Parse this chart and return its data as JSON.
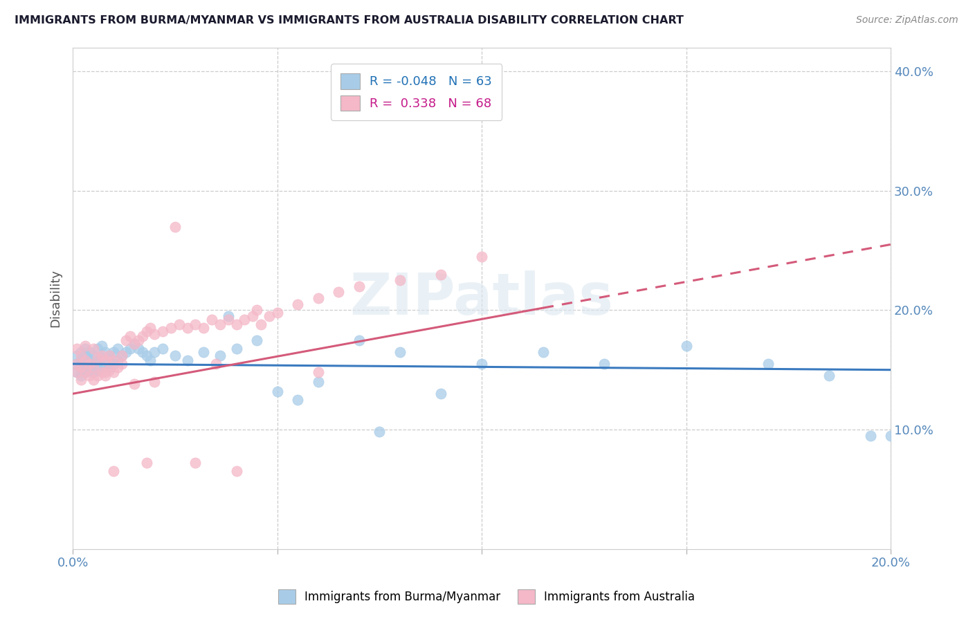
{
  "title": "IMMIGRANTS FROM BURMA/MYANMAR VS IMMIGRANTS FROM AUSTRALIA DISABILITY CORRELATION CHART",
  "source_text": "Source: ZipAtlas.com",
  "ylabel": "Disability",
  "xlim": [
    0.0,
    0.2
  ],
  "ylim": [
    0.0,
    0.42
  ],
  "blue_R": -0.048,
  "blue_N": 63,
  "pink_R": 0.338,
  "pink_N": 68,
  "blue_color": "#a8cce8",
  "pink_color": "#f4b8c8",
  "blue_line_color": "#3a7abf",
  "pink_line_color": "#d45a7a",
  "legend_label_blue": "Immigrants from Burma/Myanmar",
  "legend_label_pink": "Immigrants from Australia",
  "background_color": "#ffffff",
  "grid_color": "#cccccc",
  "title_color": "#1a1a2e",
  "axis_label_color": "#5588bb",
  "tick_color": "#5588bb",
  "blue_scatter_x": [
    0.001,
    0.001,
    0.001,
    0.002,
    0.002,
    0.002,
    0.002,
    0.003,
    0.003,
    0.003,
    0.003,
    0.004,
    0.004,
    0.004,
    0.005,
    0.005,
    0.005,
    0.006,
    0.006,
    0.006,
    0.007,
    0.007,
    0.007,
    0.008,
    0.008,
    0.009,
    0.009,
    0.01,
    0.01,
    0.011,
    0.011,
    0.012,
    0.013,
    0.014,
    0.015,
    0.016,
    0.017,
    0.018,
    0.019,
    0.02,
    0.022,
    0.025,
    0.028,
    0.032,
    0.036,
    0.04,
    0.045,
    0.05,
    0.06,
    0.07,
    0.08,
    0.09,
    0.1,
    0.115,
    0.13,
    0.15,
    0.17,
    0.185,
    0.195,
    0.2,
    0.038,
    0.055,
    0.075
  ],
  "blue_scatter_y": [
    0.148,
    0.155,
    0.162,
    0.145,
    0.152,
    0.158,
    0.165,
    0.148,
    0.155,
    0.162,
    0.168,
    0.15,
    0.158,
    0.165,
    0.148,
    0.155,
    0.162,
    0.15,
    0.158,
    0.168,
    0.152,
    0.16,
    0.17,
    0.155,
    0.165,
    0.152,
    0.162,
    0.155,
    0.165,
    0.158,
    0.168,
    0.162,
    0.165,
    0.168,
    0.172,
    0.168,
    0.165,
    0.162,
    0.158,
    0.165,
    0.168,
    0.162,
    0.158,
    0.165,
    0.162,
    0.168,
    0.175,
    0.132,
    0.14,
    0.175,
    0.165,
    0.13,
    0.155,
    0.165,
    0.155,
    0.17,
    0.155,
    0.145,
    0.095,
    0.095,
    0.195,
    0.125,
    0.098
  ],
  "pink_scatter_x": [
    0.001,
    0.001,
    0.001,
    0.002,
    0.002,
    0.002,
    0.003,
    0.003,
    0.003,
    0.004,
    0.004,
    0.005,
    0.005,
    0.005,
    0.006,
    0.006,
    0.007,
    0.007,
    0.008,
    0.008,
    0.009,
    0.009,
    0.01,
    0.01,
    0.011,
    0.012,
    0.013,
    0.014,
    0.015,
    0.016,
    0.017,
    0.018,
    0.019,
    0.02,
    0.022,
    0.024,
    0.026,
    0.028,
    0.03,
    0.032,
    0.034,
    0.036,
    0.038,
    0.04,
    0.042,
    0.044,
    0.046,
    0.048,
    0.05,
    0.055,
    0.06,
    0.065,
    0.07,
    0.08,
    0.09,
    0.1,
    0.06,
    0.025,
    0.035,
    0.045,
    0.015,
    0.02,
    0.03,
    0.01,
    0.008,
    0.012,
    0.018,
    0.04
  ],
  "pink_scatter_y": [
    0.148,
    0.155,
    0.168,
    0.142,
    0.152,
    0.162,
    0.148,
    0.158,
    0.17,
    0.145,
    0.155,
    0.142,
    0.152,
    0.168,
    0.145,
    0.16,
    0.148,
    0.162,
    0.145,
    0.158,
    0.15,
    0.162,
    0.148,
    0.158,
    0.152,
    0.162,
    0.175,
    0.178,
    0.172,
    0.175,
    0.178,
    0.182,
    0.185,
    0.18,
    0.182,
    0.185,
    0.188,
    0.185,
    0.188,
    0.185,
    0.192,
    0.188,
    0.192,
    0.188,
    0.192,
    0.195,
    0.188,
    0.195,
    0.198,
    0.205,
    0.21,
    0.215,
    0.22,
    0.225,
    0.23,
    0.245,
    0.148,
    0.27,
    0.155,
    0.2,
    0.138,
    0.14,
    0.072,
    0.065,
    0.148,
    0.155,
    0.072,
    0.065
  ]
}
